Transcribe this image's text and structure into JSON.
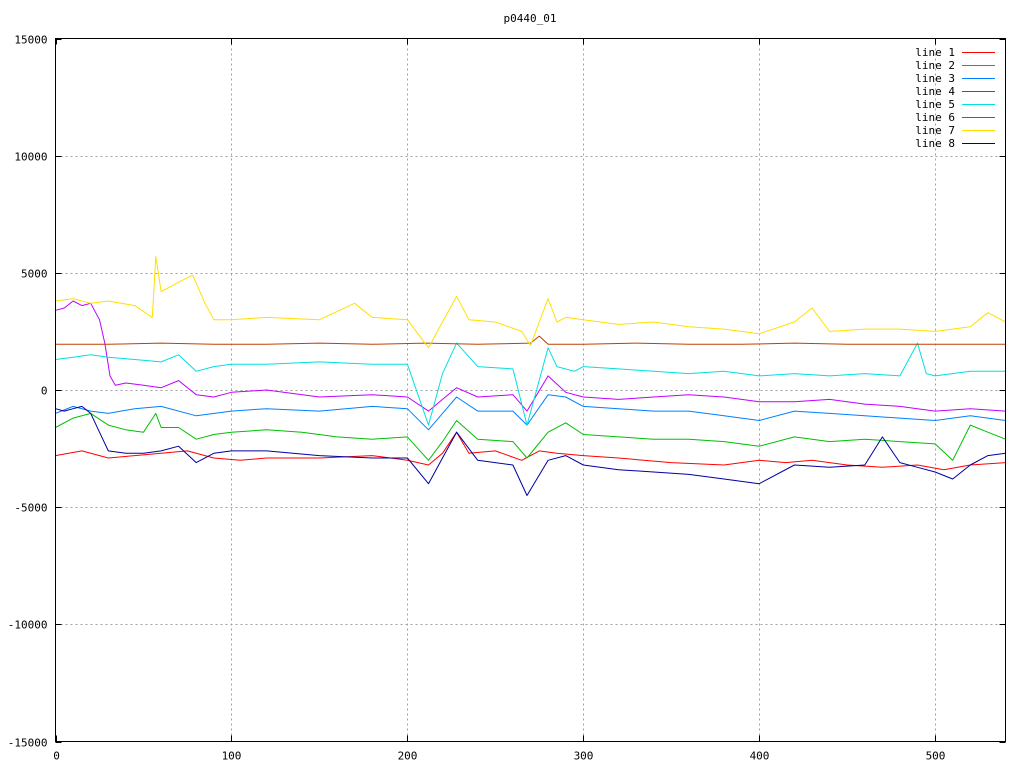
{
  "chart_data": {
    "type": "line",
    "title": "p0440_01",
    "xlabel": "",
    "ylabel": "",
    "xlim": [
      0,
      540
    ],
    "ylim": [
      -15000,
      15000
    ],
    "x_ticks": [
      0,
      100,
      200,
      300,
      400,
      500
    ],
    "y_ticks": [
      -15000,
      -10000,
      -5000,
      0,
      5000,
      10000,
      15000
    ],
    "grid": true,
    "legend_position": "top-right",
    "series": [
      {
        "name": "line 1",
        "color": "#ff0000",
        "x": [
          0,
          15,
          30,
          45,
          60,
          75,
          90,
          105,
          120,
          150,
          180,
          200,
          212,
          220,
          228,
          235,
          250,
          265,
          275,
          285,
          300,
          320,
          350,
          380,
          400,
          415,
          430,
          450,
          470,
          490,
          505,
          520,
          540
        ],
        "y": [
          -2800,
          -2600,
          -2900,
          -2800,
          -2700,
          -2600,
          -2900,
          -3000,
          -2900,
          -2900,
          -2800,
          -3000,
          -3200,
          -2700,
          -1800,
          -2700,
          -2600,
          -3000,
          -2600,
          -2700,
          -2800,
          -2900,
          -3100,
          -3200,
          -3000,
          -3100,
          -3000,
          -3200,
          -3300,
          -3200,
          -3400,
          -3200,
          -3100
        ]
      },
      {
        "name": "line 2",
        "color": "#00c000",
        "x": [
          0,
          10,
          20,
          30,
          40,
          50,
          57,
          60,
          70,
          80,
          90,
          100,
          120,
          140,
          160,
          180,
          200,
          212,
          220,
          228,
          240,
          260,
          268,
          280,
          290,
          300,
          320,
          340,
          360,
          380,
          400,
          420,
          440,
          460,
          480,
          500,
          510,
          520,
          530,
          540
        ],
        "y": [
          -1600,
          -1200,
          -1000,
          -1500,
          -1700,
          -1800,
          -1000,
          -1600,
          -1600,
          -2100,
          -1900,
          -1800,
          -1700,
          -1800,
          -2000,
          -2100,
          -2000,
          -3000,
          -2200,
          -1300,
          -2100,
          -2200,
          -2900,
          -1800,
          -1400,
          -1900,
          -2000,
          -2100,
          -2100,
          -2200,
          -2400,
          -2000,
          -2200,
          -2100,
          -2200,
          -2300,
          -3000,
          -1500,
          -1800,
          -2100
        ]
      },
      {
        "name": "line 3",
        "color": "#0080ff",
        "x": [
          0,
          10,
          20,
          30,
          45,
          60,
          80,
          100,
          120,
          150,
          180,
          200,
          212,
          220,
          228,
          240,
          260,
          268,
          280,
          290,
          300,
          320,
          340,
          360,
          380,
          400,
          420,
          440,
          460,
          480,
          500,
          520,
          540
        ],
        "y": [
          -1000,
          -700,
          -900,
          -1000,
          -800,
          -700,
          -1100,
          -900,
          -800,
          -900,
          -700,
          -800,
          -1700,
          -1000,
          -300,
          -900,
          -900,
          -1500,
          -200,
          -300,
          -700,
          -800,
          -900,
          -900,
          -1100,
          -1300,
          -900,
          -1000,
          -1100,
          -1200,
          -1300,
          -1100,
          -1300
        ]
      },
      {
        "name": "line 4",
        "color": "#c000ff",
        "x": [
          0,
          5,
          10,
          15,
          20,
          25,
          28,
          31,
          34,
          40,
          50,
          60,
          70,
          80,
          90,
          100,
          120,
          150,
          180,
          200,
          212,
          220,
          228,
          240,
          260,
          268,
          280,
          290,
          300,
          320,
          340,
          360,
          380,
          400,
          420,
          440,
          460,
          480,
          500,
          520,
          540
        ],
        "y": [
          3400,
          3500,
          3800,
          3600,
          3700,
          3000,
          2000,
          600,
          200,
          300,
          200,
          100,
          400,
          -200,
          -300,
          -100,
          0,
          -300,
          -200,
          -300,
          -900,
          -400,
          100,
          -300,
          -200,
          -900,
          600,
          -100,
          -300,
          -400,
          -300,
          -200,
          -300,
          -500,
          -500,
          -400,
          -600,
          -700,
          -900,
          -800,
          -900
        ]
      },
      {
        "name": "line 5",
        "color": "#00e0e0",
        "x": [
          0,
          10,
          20,
          30,
          45,
          60,
          70,
          80,
          90,
          100,
          120,
          150,
          180,
          200,
          212,
          220,
          228,
          240,
          260,
          268,
          280,
          285,
          295,
          300,
          320,
          340,
          360,
          380,
          400,
          420,
          440,
          460,
          480,
          490,
          495,
          500,
          520,
          540
        ],
        "y": [
          1300,
          1400,
          1500,
          1400,
          1300,
          1200,
          1500,
          800,
          1000,
          1100,
          1100,
          1200,
          1100,
          1100,
          -1500,
          700,
          2000,
          1000,
          900,
          -1500,
          1800,
          1000,
          800,
          1000,
          900,
          800,
          700,
          800,
          600,
          700,
          600,
          700,
          600,
          2000,
          700,
          600,
          800,
          800
        ]
      },
      {
        "name": "line 6",
        "color": "#c04000",
        "x": [
          0,
          30,
          60,
          90,
          120,
          150,
          180,
          210,
          240,
          270,
          275,
          280,
          300,
          330,
          360,
          390,
          420,
          450,
          480,
          510,
          540
        ],
        "y": [
          1950,
          1950,
          2000,
          1950,
          1950,
          2000,
          1950,
          2000,
          1950,
          2000,
          2300,
          1950,
          1950,
          2000,
          1950,
          1950,
          2000,
          1950,
          1950,
          1950,
          1950
        ]
      },
      {
        "name": "line 7",
        "color": "#ffe000",
        "x": [
          0,
          10,
          20,
          30,
          45,
          55,
          57,
          60,
          65,
          70,
          78,
          85,
          90,
          100,
          120,
          150,
          170,
          180,
          200,
          212,
          220,
          228,
          235,
          250,
          265,
          270,
          280,
          285,
          290,
          300,
          320,
          340,
          360,
          380,
          400,
          420,
          430,
          440,
          460,
          480,
          500,
          520,
          530,
          540
        ],
        "y": [
          3800,
          3900,
          3700,
          3800,
          3600,
          3100,
          5700,
          4200,
          4400,
          4600,
          4900,
          3700,
          3000,
          3000,
          3100,
          3000,
          3700,
          3100,
          3000,
          1800,
          2900,
          4000,
          3000,
          2900,
          2500,
          1900,
          3900,
          2900,
          3100,
          3000,
          2800,
          2900,
          2700,
          2600,
          2400,
          2900,
          3500,
          2500,
          2600,
          2600,
          2500,
          2700,
          3300,
          2900
        ]
      },
      {
        "name": "line 8",
        "color": "#0000a0",
        "x": [
          0,
          5,
          10,
          15,
          20,
          25,
          30,
          40,
          50,
          60,
          70,
          80,
          90,
          100,
          120,
          150,
          180,
          200,
          212,
          220,
          228,
          240,
          260,
          268,
          280,
          290,
          300,
          320,
          340,
          360,
          380,
          400,
          420,
          440,
          460,
          470,
          480,
          490,
          500,
          510,
          520,
          530,
          540
        ],
        "y": [
          -800,
          -900,
          -800,
          -700,
          -1000,
          -1800,
          -2600,
          -2700,
          -2700,
          -2600,
          -2400,
          -3100,
          -2700,
          -2600,
          -2600,
          -2800,
          -2900,
          -2900,
          -4000,
          -2900,
          -1800,
          -3000,
          -3200,
          -4500,
          -3000,
          -2800,
          -3200,
          -3400,
          -3500,
          -3600,
          -3800,
          -4000,
          -3200,
          -3300,
          -3200,
          -2000,
          -3100,
          -3300,
          -3500,
          -3800,
          -3200,
          -2800,
          -2700
        ]
      }
    ]
  }
}
